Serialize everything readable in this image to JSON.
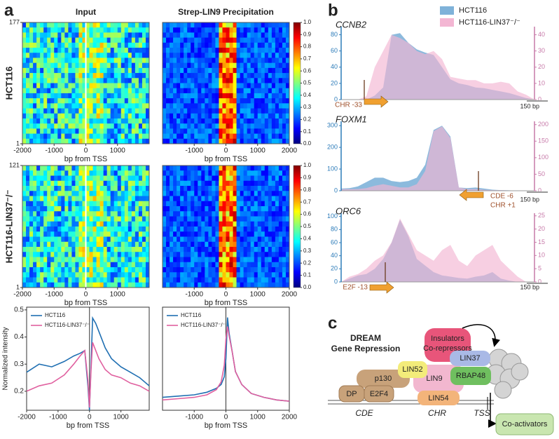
{
  "panels": {
    "a": "a",
    "b": "b",
    "c": "c"
  },
  "chart_data": [
    {
      "type": "heatmap",
      "title": "Input",
      "ylabel": "HCT116",
      "xlabel": "bp from TSS",
      "xlim": [
        -2000,
        2000
      ],
      "xticks": [
        -2000,
        -1000,
        0,
        1000
      ],
      "ylim": [
        1,
        177
      ],
      "yticks": [
        1,
        177
      ]
    },
    {
      "type": "heatmap",
      "title": "Strep-LIN9 Precipitation",
      "xlabel": "bp from TSS",
      "xlim": [
        -2000,
        2000
      ],
      "xticks": [
        -1000,
        0,
        1000,
        2000
      ],
      "clim": [
        0,
        1
      ],
      "cticks": [
        {
          "value": 0,
          "label": "0.0"
        },
        {
          "value": 0.1,
          "label": "0.1"
        },
        {
          "value": 0.2,
          "label": "0.2"
        },
        {
          "value": 0.3,
          "label": "0.3"
        },
        {
          "value": 0.4,
          "label": "0.4"
        },
        {
          "value": 0.5,
          "label": "0.5"
        },
        {
          "value": 0.6,
          "label": "0.6"
        },
        {
          "value": 0.7,
          "label": "0.7"
        },
        {
          "value": 0.8,
          "label": "0.8"
        },
        {
          "value": 0.9,
          "label": "0.9"
        },
        {
          "value": 1,
          "label": "1.0"
        }
      ]
    },
    {
      "type": "heatmap",
      "ylabel": "HCT116-LIN37⁻/⁻",
      "xlabel": "bp from TSS",
      "xlim": [
        -2000,
        2000
      ],
      "xticks": [
        -2000,
        -1000,
        0,
        1000
      ],
      "ylim": [
        1,
        121
      ],
      "yticks": [
        1,
        121
      ]
    },
    {
      "type": "heatmap",
      "xlabel": "bp from TSS",
      "xlim": [
        -2000,
        2000
      ],
      "xticks": [
        -1000,
        0,
        1000,
        2000
      ],
      "clim": [
        0,
        1
      ],
      "cticks": [
        {
          "value": 0,
          "label": "0.0"
        },
        {
          "value": 0.1,
          "label": "0.1"
        },
        {
          "value": 0.2,
          "label": "0.2"
        },
        {
          "value": 0.3,
          "label": "0.3"
        },
        {
          "value": 0.4,
          "label": "0.4"
        },
        {
          "value": 0.5,
          "label": "0.5"
        },
        {
          "value": 0.6,
          "label": "0.6"
        },
        {
          "value": 0.7,
          "label": "0.7"
        },
        {
          "value": 0.8,
          "label": "0.8"
        },
        {
          "value": 0.9,
          "label": "0.9"
        },
        {
          "value": 1,
          "label": "1.0"
        }
      ]
    },
    {
      "type": "line",
      "ylabel": "Normalized intensity",
      "xlabel": "bp from TSS",
      "legend": "upper left",
      "xlim": [
        -2000,
        1900
      ],
      "xticks": [
        -2000,
        -1000,
        0,
        1000
      ],
      "ylim": [
        0.13,
        0.51
      ],
      "yticks": [
        0.2,
        0.3,
        0.4,
        0.5
      ],
      "x": [
        -2000,
        -1600,
        -1200,
        -800,
        -500,
        -300,
        -150,
        -50,
        0,
        50,
        100,
        200,
        300,
        500,
        700,
        1000,
        1300,
        1600,
        1900
      ],
      "series": [
        {
          "name": "HCT116",
          "color": "#1f6fb2",
          "values": [
            0.27,
            0.3,
            0.29,
            0.31,
            0.33,
            0.34,
            0.35,
            0.22,
            0.13,
            0.3,
            0.47,
            0.45,
            0.42,
            0.36,
            0.32,
            0.29,
            0.27,
            0.25,
            0.22
          ]
        },
        {
          "name": "HCT116-LIN37⁻/⁻",
          "color": "#e0609f",
          "values": [
            0.2,
            0.22,
            0.23,
            0.26,
            0.3,
            0.33,
            0.35,
            0.24,
            0.14,
            0.28,
            0.38,
            0.35,
            0.32,
            0.28,
            0.26,
            0.25,
            0.23,
            0.22,
            0.2
          ]
        }
      ]
    },
    {
      "type": "line",
      "xlabel": "bp from TSS",
      "legend": "upper left",
      "xlim": [
        -2000,
        2000
      ],
      "xticks": [
        -1000,
        0,
        1000,
        2000
      ],
      "ylim": [
        0,
        0.8
      ],
      "x": [
        -2000,
        -1500,
        -1000,
        -600,
        -300,
        -150,
        -50,
        0,
        50,
        100,
        200,
        300,
        500,
        800,
        1200,
        1600,
        2000
      ],
      "series": [
        {
          "name": "HCT116",
          "color": "#1f6fb2",
          "values": [
            0.1,
            0.11,
            0.12,
            0.14,
            0.17,
            0.2,
            0.26,
            0.4,
            0.72,
            0.6,
            0.45,
            0.3,
            0.2,
            0.13,
            0.1,
            0.08,
            0.07
          ]
        },
        {
          "name": "HCT116-LIN37⁻/⁻",
          "color": "#e0609f",
          "values": [
            0.08,
            0.09,
            0.1,
            0.12,
            0.16,
            0.22,
            0.35,
            0.55,
            0.65,
            0.58,
            0.45,
            0.3,
            0.2,
            0.13,
            0.1,
            0.08,
            0.07
          ]
        }
      ]
    },
    {
      "type": "area",
      "title": "CCNB2",
      "annotations": [
        "CHR -33",
        "150 bp"
      ],
      "ylim": [
        0,
        90
      ],
      "yticks": [
        0,
        20,
        40,
        60,
        80
      ],
      "y2lim": [
        0,
        45
      ],
      "y2ticks": [
        0,
        10,
        20,
        30,
        40
      ],
      "series": [
        {
          "name": "HCT116",
          "color": "#7fb2d9",
          "values": [
            0,
            0,
            0,
            0,
            5,
            15,
            80,
            82,
            70,
            62,
            58,
            55,
            40,
            25,
            20,
            18,
            15,
            14,
            12,
            10,
            8,
            5,
            2,
            0
          ]
        },
        {
          "name": "HCT116-LIN37⁻/⁻",
          "color": "#f3b6d3",
          "axis": "y2",
          "values": [
            0,
            0,
            0,
            2,
            20,
            30,
            40,
            38,
            35,
            30,
            28,
            30,
            25,
            14,
            13,
            12,
            12,
            10,
            10,
            11,
            10,
            5,
            3,
            0
          ]
        }
      ]
    },
    {
      "type": "area",
      "title": "FOXM1",
      "annotations": [
        "CDE -6",
        "CHR +1",
        "150 bp"
      ],
      "ylim": [
        0,
        320
      ],
      "yticks": [
        0,
        100,
        200,
        300
      ],
      "y2lim": [
        0,
        210
      ],
      "y2ticks": [
        0,
        50,
        100,
        150,
        200
      ],
      "series": [
        {
          "color": "#7fb2d9",
          "values": [
            10,
            12,
            20,
            40,
            60,
            60,
            45,
            40,
            45,
            60,
            120,
            280,
            300,
            250,
            15,
            12,
            15,
            10,
            5,
            3,
            2,
            0,
            0,
            0
          ]
        },
        {
          "color": "#f3b6d3",
          "axis": "y2",
          "values": [
            5,
            5,
            5,
            8,
            15,
            20,
            15,
            10,
            10,
            20,
            60,
            180,
            195,
            160,
            10,
            5,
            5,
            3,
            2,
            2,
            1,
            0,
            0,
            0
          ]
        }
      ]
    },
    {
      "type": "area",
      "title": "ORC6",
      "annotations": [
        "E2F -13",
        "150 bp"
      ],
      "ylim": [
        0,
        105
      ],
      "yticks": [
        0,
        20,
        40,
        60,
        80,
        100
      ],
      "y2lim": [
        0,
        26
      ],
      "y2ticks": [
        0,
        5,
        10,
        15,
        20,
        25
      ],
      "series": [
        {
          "color": "#7fb2d9",
          "values": [
            0,
            5,
            10,
            12,
            20,
            35,
            60,
            95,
            70,
            35,
            25,
            15,
            10,
            8,
            6,
            5,
            8,
            10,
            15,
            5,
            2,
            0,
            0,
            0
          ]
        },
        {
          "color": "#f3b6d3",
          "axis": "y2",
          "values": [
            0,
            2,
            3,
            5,
            8,
            10,
            15,
            24,
            18,
            12,
            10,
            8,
            12,
            14,
            8,
            6,
            10,
            12,
            14,
            8,
            5,
            2,
            0,
            0
          ]
        }
      ]
    }
  ],
  "panel_c": {
    "title": "DREAM",
    "subtitle": "Gene Repression",
    "insulators": "Insulators",
    "corepressors": "Co-repressors",
    "lin37": "LIN37",
    "p130": "p130",
    "lin52": "LIN52",
    "lin9": "LIN9",
    "rbap48": "RBAP48",
    "dp": "DP",
    "e2f4": "E2F4",
    "lin54": "LIN54",
    "cde": "CDE",
    "chr": "CHR",
    "tss": "TSS",
    "coactivators": "Co-activators"
  }
}
